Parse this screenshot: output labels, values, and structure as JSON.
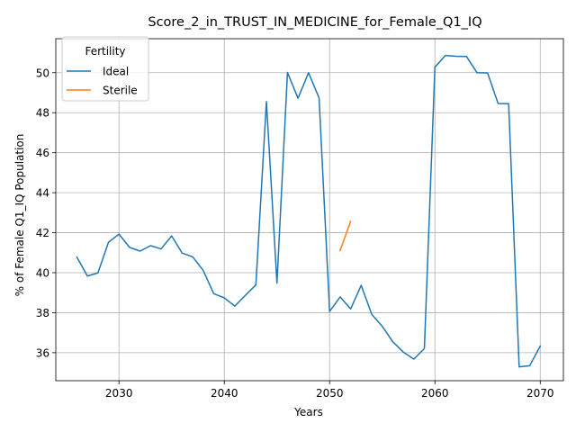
{
  "chart_data": {
    "type": "line",
    "title": "Score_2_in_TRUST_IN_MEDICINE_for_Female_Q1_IQ",
    "xlabel": "Years",
    "ylabel": "% of Female Q1_IQ Population",
    "xlim": [
      2024.0,
      2072.2
    ],
    "ylim": [
      34.6,
      51.7
    ],
    "xticks": [
      2030,
      2040,
      2050,
      2060,
      2070
    ],
    "yticks": [
      36,
      38,
      40,
      42,
      44,
      46,
      48,
      50
    ],
    "grid": true,
    "legend": {
      "title": "Fertility",
      "placement": "top-left"
    },
    "series": [
      {
        "name": "Ideal",
        "color": "#1f77b4",
        "x": [
          2026,
          2027,
          2028,
          2029,
          2030,
          2031,
          2032,
          2033,
          2034,
          2035,
          2036,
          2037,
          2038,
          2039,
          2040,
          2041,
          2042,
          2043,
          2044,
          2045,
          2046,
          2047,
          2048,
          2049,
          2050,
          2051,
          2052,
          2053,
          2054,
          2055,
          2056,
          2057,
          2058,
          2059,
          2060,
          2061,
          2062,
          2063,
          2064,
          2065,
          2066,
          2067,
          2068,
          2069,
          2070
        ],
        "y": [
          40.78,
          39.83,
          39.99,
          41.52,
          41.93,
          41.27,
          41.08,
          41.35,
          41.19,
          41.84,
          40.98,
          40.79,
          40.11,
          38.95,
          38.74,
          38.33,
          38.87,
          39.39,
          48.55,
          39.48,
          50.01,
          48.72,
          50.0,
          48.74,
          38.06,
          38.79,
          38.19,
          39.37,
          37.92,
          37.32,
          36.55,
          36.03,
          35.68,
          36.21,
          50.28,
          50.86,
          50.82,
          50.81,
          50.0,
          49.99,
          48.46,
          48.45,
          35.29,
          35.35,
          36.33
        ]
      },
      {
        "name": "Sterile",
        "color": "#ff7f0e",
        "x": [
          2051,
          2052
        ],
        "y": [
          41.11,
          42.57
        ]
      }
    ]
  }
}
